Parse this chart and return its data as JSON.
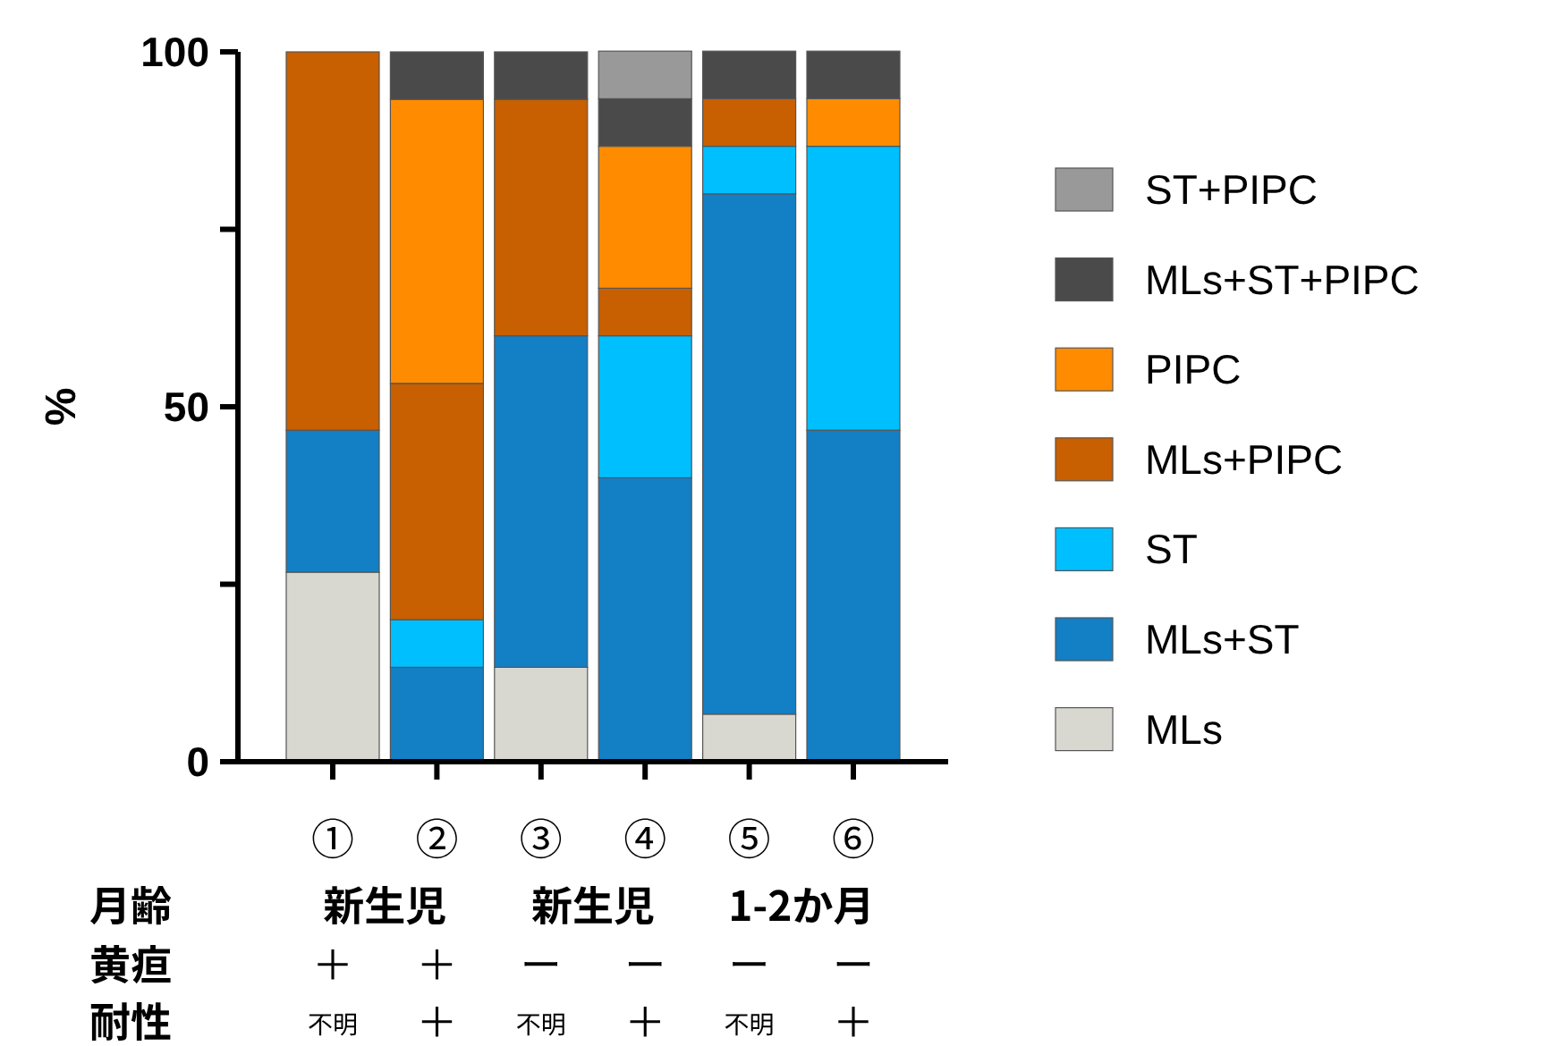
{
  "chart_data": {
    "type": "bar",
    "stacked": true,
    "ylabel": "%",
    "categories": [
      "①",
      "②",
      "③",
      "④",
      "⑤",
      "⑥"
    ],
    "series": [
      {
        "name": "MLs",
        "color": "#d8d8d0",
        "values": [
          26.7,
          0,
          13.3,
          0,
          6.7,
          0
        ]
      },
      {
        "name": "MLs+ST",
        "color": "#137fc4",
        "values": [
          20,
          13.3,
          46.7,
          40,
          73.3,
          46.7
        ]
      },
      {
        "name": "ST",
        "color": "#00bfff",
        "values": [
          0,
          6.7,
          0,
          20,
          6.7,
          40
        ]
      },
      {
        "name": "MLs+PIPC",
        "color": "#c85f00",
        "values": [
          53.3,
          33.3,
          33.3,
          6.7,
          6.7,
          0
        ]
      },
      {
        "name": "PIPC",
        "color": "#ff8c00",
        "values": [
          0,
          40,
          0,
          20,
          0,
          6.7
        ]
      },
      {
        "name": "MLs+ST+PIPC",
        "color": "#4a4a4a",
        "values": [
          0,
          6.7,
          6.7,
          6.7,
          6.7,
          6.7
        ]
      },
      {
        "name": "ST+PIPC",
        "color": "#999999",
        "values": [
          0,
          0,
          0,
          6.7,
          0,
          0
        ]
      }
    ],
    "ylim": [
      0,
      100
    ],
    "yticks": [
      0,
      {
        "value": 25,
        "label": null
      },
      50,
      {
        "value": 75,
        "label": null
      },
      100
    ],
    "legend": "right",
    "annotations": [
      "月齢",
      "黄疸",
      "耐性",
      "新生児",
      "新生児",
      "1-2か月",
      "＋",
      "＋",
      "ー",
      "ー",
      "ー",
      "ー",
      "不明",
      "＋",
      "不明",
      "＋",
      "不明",
      "＋"
    ]
  }
}
